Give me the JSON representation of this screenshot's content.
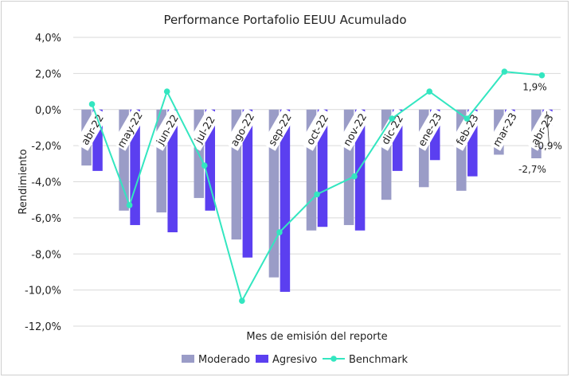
{
  "chart_data": {
    "type": "bar",
    "title": "Performance Portafolio EEUU Acumulado",
    "xlabel": "Mes de emisión del reporte",
    "ylabel": "Rendimiento",
    "categories": [
      "abr-22",
      "may-22",
      "jun-22",
      "jul-22",
      "ago-22",
      "sep-22",
      "oct-22",
      "nov-22",
      "dic-22",
      "ene-23",
      "feb-23",
      "mar-23",
      "abr-23"
    ],
    "y_ticks": [
      "4,0%",
      "2,0%",
      "0,0%",
      "-2,0%",
      "-4,0%",
      "-6,0%",
      "-8,0%",
      "-10,0%",
      "-12,0%"
    ],
    "ylim": [
      -12,
      4
    ],
    "grid": true,
    "legend_position": "bottom",
    "series": [
      {
        "name": "Moderado",
        "type": "bar",
        "color": "#9a9cc7",
        "values": [
          -3.1,
          -5.6,
          -5.7,
          -4.9,
          -7.2,
          -9.3,
          -6.7,
          -6.4,
          -5.0,
          -4.3,
          -4.5,
          -2.5,
          -2.7
        ]
      },
      {
        "name": "Agresivo",
        "type": "bar",
        "color": "#5b3ff0",
        "values": [
          -3.4,
          -6.4,
          -6.8,
          -5.6,
          -8.2,
          -10.1,
          -6.5,
          -6.7,
          -3.4,
          -2.8,
          -3.7,
          -0.4,
          -0.9
        ]
      },
      {
        "name": "Benchmark",
        "type": "line",
        "color": "#33e6c0",
        "values": [
          0.3,
          -5.3,
          1.0,
          -3.1,
          -10.6,
          -6.8,
          -4.7,
          -3.7,
          -0.5,
          1.0,
          -0.5,
          2.1,
          1.9
        ]
      }
    ],
    "data_labels": [
      {
        "series": "Benchmark",
        "category": "abr-23",
        "text": "1,9%"
      },
      {
        "series": "Agresivo",
        "category": "abr-23",
        "text": "-0,9%"
      },
      {
        "series": "Moderado",
        "category": "abr-23",
        "text": "-2,7%"
      }
    ]
  }
}
